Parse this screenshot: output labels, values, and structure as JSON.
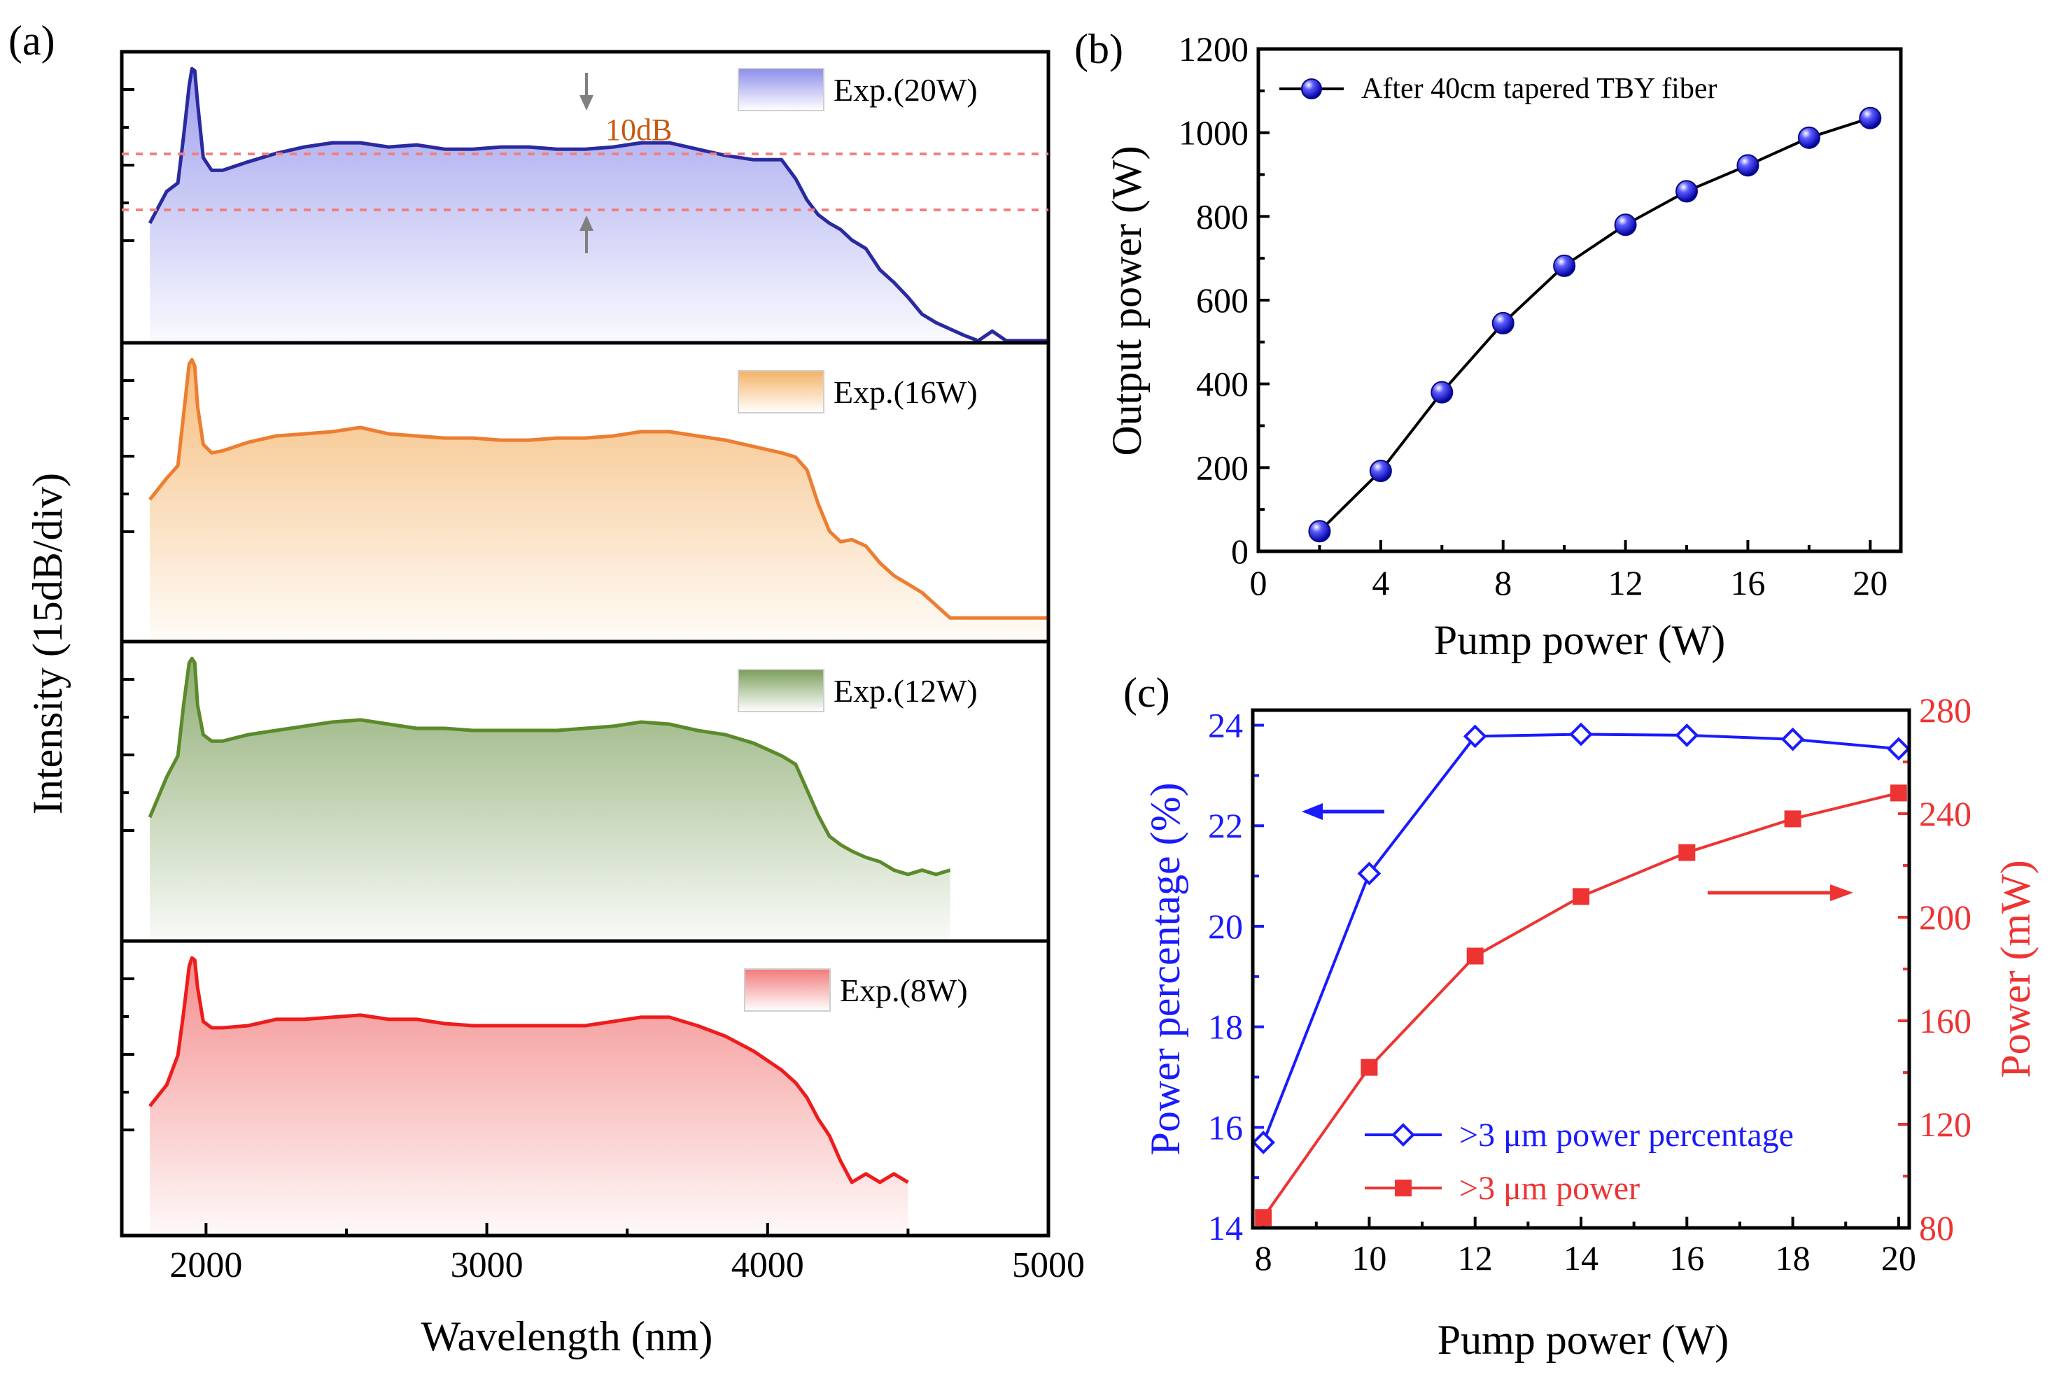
{
  "figure": {
    "panel_a_label": "(a)",
    "panel_b_label": "(b)",
    "panel_c_label": "(c)"
  },
  "chart_data": [
    {
      "id": "a",
      "type": "area",
      "title": "",
      "xlabel": "Wavelength (nm)",
      "ylabel": "Intensity (15dB/div)",
      "xlim": [
        1700,
        5000
      ],
      "xticks": [
        2000,
        3000,
        4000,
        5000
      ],
      "annotation": "10dB",
      "stacked_panels": [
        {
          "name": "Exp.(20W)",
          "color": "#2a2aa0",
          "fill": "#8d8deb",
          "wavelength_nm": [
            1800,
            1860,
            1900,
            1920,
            1940,
            1950,
            1960,
            1970,
            1990,
            2020,
            2060,
            2150,
            2250,
            2350,
            2450,
            2550,
            2650,
            2750,
            2850,
            2950,
            3050,
            3150,
            3250,
            3350,
            3450,
            3550,
            3650,
            3750,
            3850,
            3950,
            4050,
            4100,
            4140,
            4180,
            4220,
            4260,
            4300,
            4350,
            4400,
            4450,
            4500,
            4550,
            4600,
            4650,
            4700,
            4750,
            4800,
            4850,
            4900,
            4950,
            5000
          ],
          "intensity_db": [
            -40.5,
            -33,
            -31,
            -20,
            -8,
            -4,
            -4.5,
            -12,
            -25,
            -28,
            -28,
            -26,
            -24,
            -22.5,
            -21.5,
            -21.5,
            -22.5,
            -22,
            -23,
            -23,
            -22.5,
            -22.5,
            -23,
            -23,
            -22.5,
            -21.5,
            -21.5,
            -23,
            -24.5,
            -25.5,
            -25.5,
            -30,
            -35,
            -38.5,
            -40.5,
            -42,
            -44.5,
            -46.5,
            -51.5,
            -54.5,
            -58,
            -62,
            -64,
            -65.5,
            -67,
            -69,
            -66,
            -69.5,
            -71.5,
            -69.5,
            -73
          ]
        },
        {
          "name": "Exp.(16W)",
          "color": "#ed7d31",
          "fill": "#f4b265",
          "wavelength_nm": [
            1800,
            1860,
            1900,
            1920,
            1940,
            1950,
            1960,
            1970,
            1990,
            2020,
            2060,
            2150,
            2250,
            2350,
            2450,
            2550,
            2650,
            2750,
            2850,
            2950,
            3050,
            3150,
            3250,
            3350,
            3450,
            3550,
            3650,
            3750,
            3850,
            3950,
            4050,
            4100,
            4140,
            4180,
            4220,
            4260,
            4300,
            4350,
            4400,
            4450,
            4500,
            4550,
            4600,
            4650,
            4700,
            4750,
            4800,
            4850,
            4900,
            4950,
            5000
          ],
          "intensity_db": [
            -37,
            -32,
            -29,
            -17,
            -5,
            -4,
            -5.5,
            -15,
            -24,
            -26,
            -25.5,
            -23.5,
            -22,
            -21.5,
            -21,
            -20,
            -21.5,
            -22,
            -22.5,
            -22.5,
            -23,
            -23,
            -22.5,
            -22.5,
            -22,
            -21,
            -21,
            -22,
            -23,
            -24.5,
            -26,
            -27,
            -30,
            -38,
            -44.5,
            -47,
            -46.5,
            -48,
            -52,
            -55,
            -57,
            -59,
            -62,
            -65,
            -65,
            -65,
            -65,
            -65,
            -65,
            -65,
            -65
          ]
        },
        {
          "name": "Exp.(12W)",
          "color": "#5b8a2b",
          "fill": "#7a9e5a",
          "wavelength_nm": [
            1800,
            1860,
            1900,
            1920,
            1940,
            1950,
            1960,
            1970,
            1990,
            2020,
            2060,
            2150,
            2250,
            2350,
            2450,
            2550,
            2650,
            2750,
            2850,
            2950,
            3050,
            3150,
            3250,
            3350,
            3450,
            3550,
            3650,
            3750,
            3850,
            3950,
            4050,
            4100,
            4140,
            4180,
            4220,
            4260,
            4300,
            4350,
            4400,
            4450,
            4500,
            4550,
            4600,
            4650
          ],
          "intensity_db": [
            -41.5,
            -32,
            -27,
            -15,
            -5,
            -4,
            -5,
            -15,
            -22,
            -23.5,
            -23.5,
            -22,
            -21,
            -20,
            -19,
            -18.5,
            -19.5,
            -20.5,
            -20.5,
            -21,
            -21,
            -21,
            -21,
            -20.5,
            -20,
            -19,
            -19.5,
            -21,
            -22,
            -24,
            -27,
            -29,
            -35,
            -41,
            -46,
            -48,
            -49.5,
            -51,
            -52,
            -54,
            -55,
            -54,
            -55,
            -54
          ]
        },
        {
          "name": "Exp.(8W)",
          "color": "#ee1c1c",
          "fill": "#f27a7a",
          "wavelength_nm": [
            1800,
            1860,
            1900,
            1920,
            1940,
            1950,
            1960,
            1970,
            1990,
            2020,
            2060,
            2150,
            2250,
            2350,
            2450,
            2550,
            2650,
            2750,
            2850,
            2950,
            3050,
            3150,
            3250,
            3350,
            3450,
            3550,
            3650,
            3750,
            3850,
            3950,
            4050,
            4100,
            4140,
            4180,
            4220,
            4260,
            4300,
            4350,
            4400,
            4450,
            4500
          ],
          "intensity_db": [
            -39,
            -34,
            -27,
            -17,
            -6,
            -4,
            -4.5,
            -11,
            -19,
            -20.5,
            -20.5,
            -20,
            -18.5,
            -18.5,
            -18,
            -17.5,
            -18.5,
            -18.5,
            -19.5,
            -20,
            -20,
            -20,
            -20,
            -20,
            -19,
            -18,
            -18,
            -20,
            -22.5,
            -26,
            -30.5,
            -33.5,
            -37,
            -42,
            -46,
            -52,
            -57,
            -55,
            -57,
            -55,
            -57
          ]
        }
      ]
    },
    {
      "id": "b",
      "type": "line",
      "title": "",
      "xlabel": "Pump power (W)",
      "ylabel": "Output power (W)",
      "xlim": [
        0,
        21
      ],
      "ylim": [
        0,
        1200
      ],
      "xticks": [
        0,
        4,
        8,
        12,
        16,
        20
      ],
      "yticks": [
        0,
        200,
        400,
        600,
        800,
        1000,
        1200
      ],
      "legend": "top-left",
      "series": [
        {
          "name": "After 40cm tapered TBY fiber",
          "color": "#1a1ae6",
          "x": [
            2,
            4,
            6,
            8,
            10,
            12,
            14,
            16,
            18,
            20
          ],
          "y": [
            48,
            192,
            380,
            545,
            682,
            780,
            860,
            922,
            988,
            1035
          ]
        }
      ]
    },
    {
      "id": "c",
      "type": "line",
      "title": "",
      "xlabel": "Pump power (W)",
      "ylabel_left": "Power percentage (%)",
      "ylabel_right": "Power (mW)",
      "xlim": [
        7.8,
        20.2
      ],
      "ylim_left": [
        14,
        24.3
      ],
      "ylim_right": [
        80,
        280
      ],
      "xticks": [
        8,
        10,
        12,
        14,
        16,
        18,
        20
      ],
      "yticks_left": [
        14,
        16,
        18,
        20,
        22,
        24
      ],
      "yticks_right": [
        80,
        120,
        160,
        200,
        240,
        280
      ],
      "legend": "bottom-center",
      "series": [
        {
          "name": ">3 μm power percentage",
          "axis": "left",
          "color": "#1a1aff",
          "x": [
            8,
            10,
            12,
            14,
            16,
            18,
            20
          ],
          "y": [
            15.7,
            21.05,
            23.78,
            23.82,
            23.8,
            23.72,
            23.53
          ]
        },
        {
          "name": ">3 μm power",
          "axis": "right",
          "color": "#ee3333",
          "x": [
            8,
            10,
            12,
            14,
            16,
            18,
            20
          ],
          "y": [
            84,
            142,
            185,
            208,
            225,
            238,
            248
          ]
        }
      ]
    }
  ]
}
